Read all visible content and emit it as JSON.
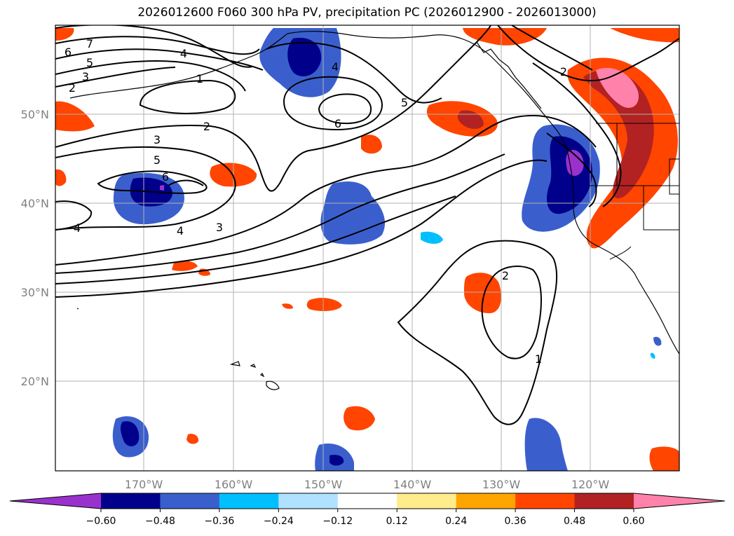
{
  "title": "2026012600 F060 300 hPa PV, precipitation PC (2026012900 - 2026013000)",
  "map": {
    "lat_labels": [
      "50°N",
      "40°N",
      "30°N",
      "20°N"
    ],
    "lon_labels": [
      "170°W",
      "160°W",
      "150°W",
      "140°W",
      "130°W",
      "120°W"
    ],
    "pv_contour_labels": [
      "7",
      "6",
      "5",
      "4",
      "3",
      "2",
      "1",
      "4",
      "6",
      "2",
      "3",
      "5",
      "6",
      "4",
      "4",
      "3",
      "5",
      "2",
      "2",
      "1"
    ]
  },
  "colorbar": {
    "ticks": [
      "−0.60",
      "−0.48",
      "−0.36",
      "−0.24",
      "−0.12",
      "0.12",
      "0.24",
      "0.36",
      "0.48",
      "0.60"
    ],
    "colors": [
      "#9932cc",
      "#00008b",
      "#3a5fcd",
      "#00bfff",
      "#b0e2ff",
      "#ffffff",
      "#ffec8b",
      "#ffa500",
      "#ff4500",
      "#b22222",
      "#ff82ab"
    ]
  }
}
